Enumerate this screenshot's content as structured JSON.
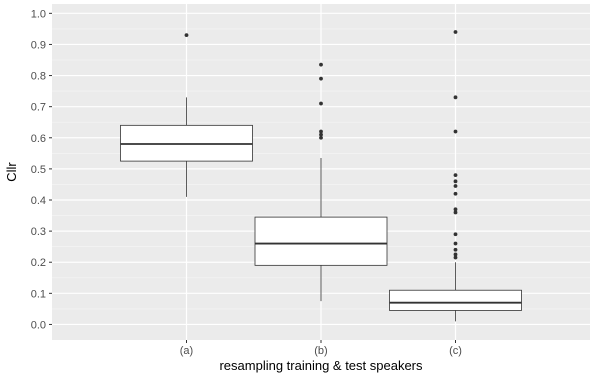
{
  "chart_data": {
    "type": "boxplot",
    "xlabel": "resampling training & test speakers",
    "ylabel": "Cllr",
    "ylim": [
      -0.05,
      1.03
    ],
    "yticks": [
      0.0,
      0.1,
      0.2,
      0.3,
      0.4,
      0.5,
      0.6,
      0.7,
      0.8,
      0.9,
      1.0
    ],
    "ytick_labels": [
      "0.0",
      "0.1",
      "0.2",
      "0.3",
      "0.4",
      "0.5",
      "0.6",
      "0.7",
      "0.8",
      "0.9",
      "1.0"
    ],
    "categories": [
      "(a)",
      "(b)",
      "(c)"
    ],
    "grid": true,
    "colors": {
      "panel": "#ebebeb",
      "grid_major": "#ffffff",
      "box_fill": "#ffffff",
      "box_stroke": "#333333",
      "outlier": "#333333"
    },
    "boxes": [
      {
        "category": "(a)",
        "whisker_low": 0.41,
        "q1": 0.525,
        "median": 0.58,
        "q3": 0.64,
        "whisker_high": 0.73,
        "outliers": [
          0.93
        ]
      },
      {
        "category": "(b)",
        "whisker_low": 0.075,
        "q1": 0.19,
        "median": 0.26,
        "q3": 0.345,
        "whisker_high": 0.535,
        "outliers": [
          0.6,
          0.61,
          0.62,
          0.71,
          0.79,
          0.835
        ]
      },
      {
        "category": "(c)",
        "whisker_low": 0.01,
        "q1": 0.045,
        "median": 0.07,
        "q3": 0.11,
        "whisker_high": 0.2,
        "outliers": [
          0.215,
          0.225,
          0.24,
          0.26,
          0.29,
          0.36,
          0.37,
          0.42,
          0.445,
          0.46,
          0.48,
          0.62,
          0.73,
          0.94
        ]
      }
    ]
  }
}
